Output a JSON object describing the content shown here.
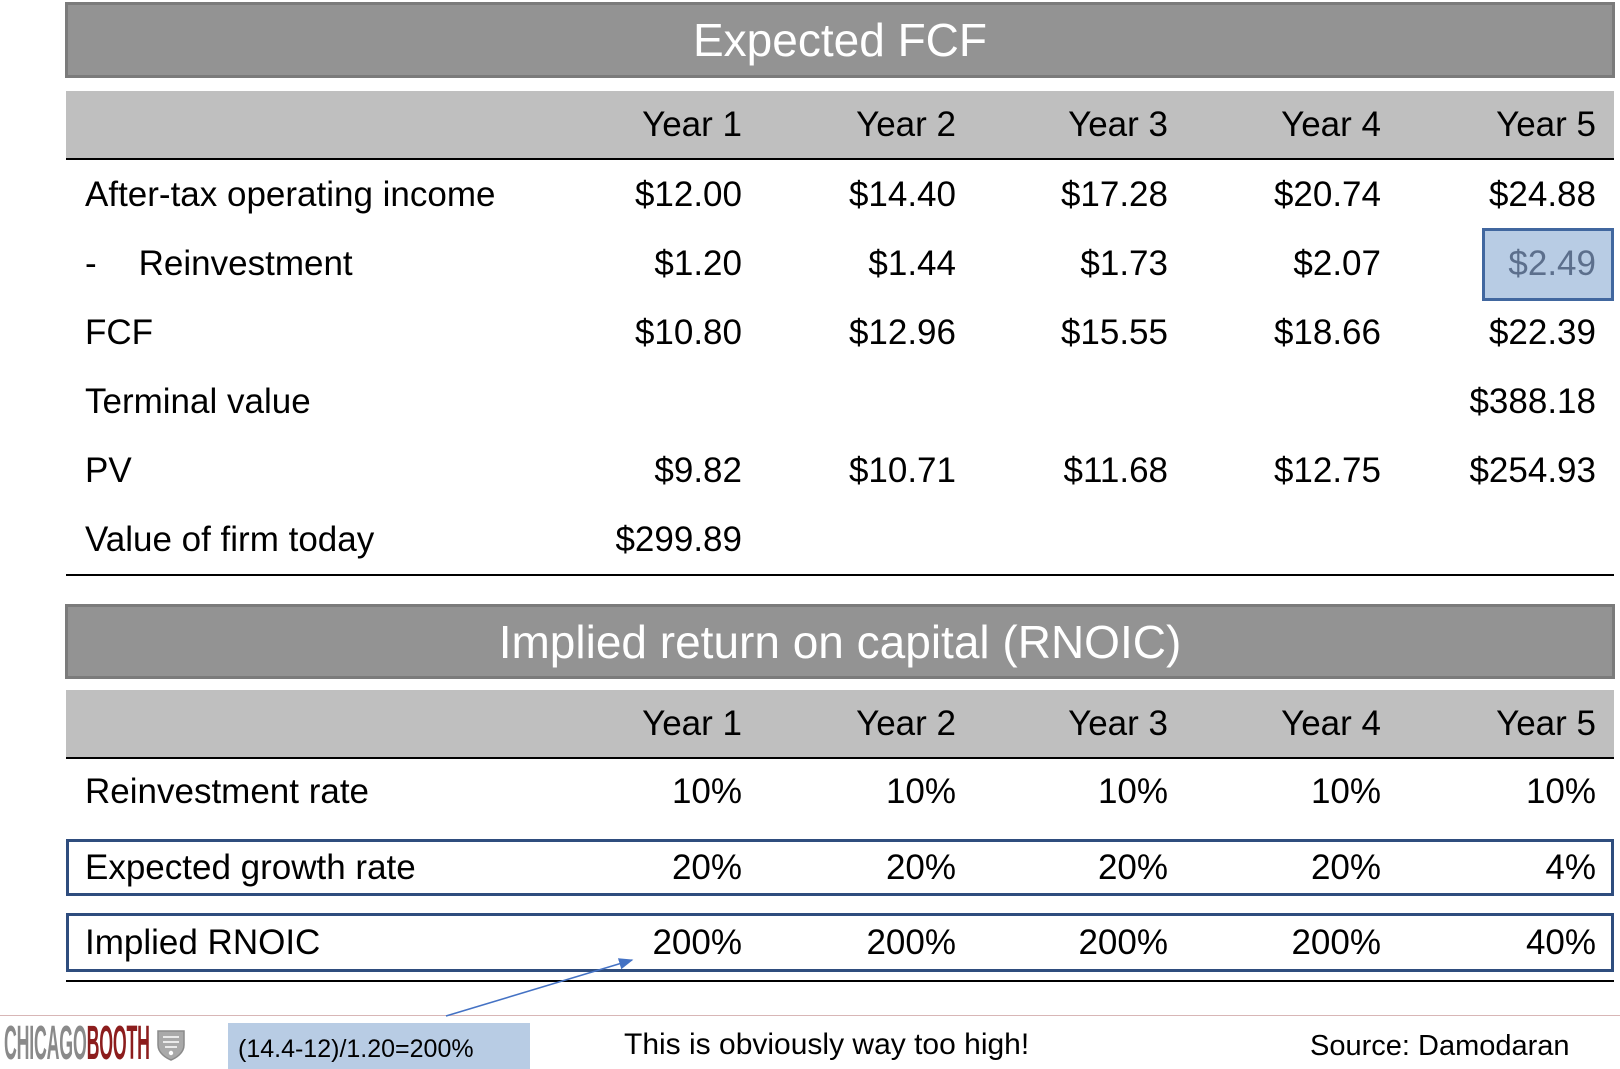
{
  "fcf_table": {
    "title": "Expected FCF",
    "years": [
      "Year 1",
      "Year 2",
      "Year 3",
      "Year 4",
      "Year 5"
    ],
    "rows": [
      {
        "label": "After-tax operating income",
        "values": [
          "$12.00",
          "$14.40",
          "$17.28",
          "$20.74",
          "$24.88"
        ]
      },
      {
        "prefix": "-",
        "label": "Reinvestment",
        "values": [
          "$1.20",
          "$1.44",
          "$1.73",
          "$2.07",
          "$2.49"
        ]
      },
      {
        "label": "FCF",
        "values": [
          "$10.80",
          "$12.96",
          "$15.55",
          "$18.66",
          "$22.39"
        ]
      },
      {
        "label": "Terminal value",
        "values": [
          "",
          "",
          "",
          "",
          "$388.18"
        ]
      },
      {
        "label": "PV",
        "values": [
          "$9.82",
          "$10.71",
          "$11.68",
          "$12.75",
          "$254.93"
        ]
      },
      {
        "label": "Value of firm today",
        "values": [
          "$299.89",
          "",
          "",
          "",
          ""
        ]
      }
    ]
  },
  "rnoic_table": {
    "title": "Implied return on capital (RNOIC)",
    "years": [
      "Year 1",
      "Year 2",
      "Year 3",
      "Year 4",
      "Year 5"
    ],
    "rows": [
      {
        "label": "Reinvestment rate",
        "values": [
          "10%",
          "10%",
          "10%",
          "10%",
          "10%"
        ]
      },
      {
        "label": "Expected growth rate",
        "values": [
          "20%",
          "20%",
          "20%",
          "20%",
          "4%"
        ]
      },
      {
        "label": "Implied RNOIC",
        "values": [
          "200%",
          "200%",
          "200%",
          "200%",
          "40%"
        ]
      }
    ]
  },
  "annotation": {
    "formula": "(14.4-12)/1.20=200%",
    "comment": "This is obviously way too high!"
  },
  "footer": {
    "logo": {
      "part1": "CHICAGO",
      "part2": "BOOTH",
      "seal_icon": "booth-seal-icon"
    },
    "source": "Source: Damodaran"
  },
  "colors": {
    "title_bar": "#939393",
    "title_bar_border": "#7b7b7b",
    "header_row": "#bfbfbf",
    "highlight_fill": "#b8cce4",
    "highlight_border": "#41679f",
    "highlight_text": "#5c6f8c",
    "row_box_border": "#2f4d7e",
    "arrow": "#4472c4",
    "logo_gray": "#8a8a8a",
    "logo_maroon": "#8c1d1d",
    "footer_rule": "#d8b6b6"
  }
}
